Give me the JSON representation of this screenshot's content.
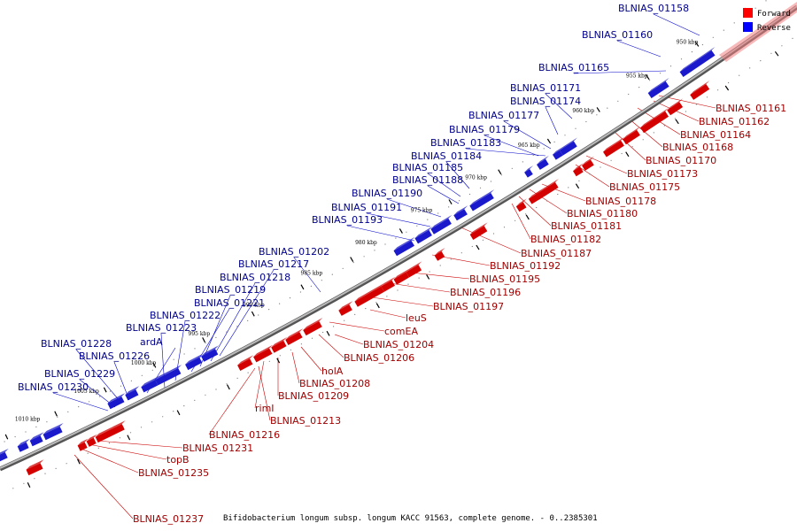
{
  "legend": {
    "forward_label": "Forward",
    "forward_color": "#ff0000",
    "reverse_label": "Reverse",
    "reverse_color": "#0000ff"
  },
  "caption": "Bifidobacterium longum subsp. longum KACC 91563, complete genome. - 0..2385301",
  "kbp_ticks": [
    "950 kbp",
    "955 kbp",
    "960 kbp",
    "965 kbp",
    "970 kbp",
    "975 kbp",
    "980 kbp",
    "985 kbp",
    "990 kbp",
    "995 kbp",
    "1000 kbp",
    "1005 kbp",
    "1010 kbp"
  ],
  "reverse_genes": [
    "BLNIAS_01158",
    "BLNIAS_01160",
    "BLNIAS_01165",
    "BLNIAS_01171",
    "BLNIAS_01174",
    "BLNIAS_01177",
    "BLNIAS_01179",
    "BLNIAS_01183",
    "BLNIAS_01184",
    "BLNIAS_01185",
    "BLNIAS_01188",
    "BLNIAS_01190",
    "BLNIAS_01191",
    "BLNIAS_01193",
    "BLNIAS_01202",
    "BLNIAS_01217",
    "BLNIAS_01218",
    "BLNIAS_01219",
    "BLNIAS_01221",
    "BLNIAS_01222",
    "BLNIAS_01223",
    "ardA",
    "BLNIAS_01228",
    "BLNIAS_01226",
    "BLNIAS_01229",
    "BLNIAS_01230"
  ],
  "forward_genes": [
    "BLNIAS_01161",
    "BLNIAS_01162",
    "BLNIAS_01164",
    "BLNIAS_01168",
    "BLNIAS_01170",
    "BLNIAS_01173",
    "BLNIAS_01175",
    "BLNIAS_01178",
    "BLNIAS_01180",
    "BLNIAS_01181",
    "BLNIAS_01182",
    "BLNIAS_01187",
    "BLNIAS_01192",
    "BLNIAS_01195",
    "BLNIAS_01196",
    "BLNIAS_01197",
    "leuS",
    "comEA",
    "BLNIAS_01204",
    "BLNIAS_01206",
    "holA",
    "BLNIAS_01208",
    "BLNIAS_01209",
    "rimI",
    "BLNIAS_01213",
    "BLNIAS_01216",
    "BLNIAS_01231",
    "topB",
    "BLNIAS_01235",
    "BLNIAS_01237"
  ]
}
